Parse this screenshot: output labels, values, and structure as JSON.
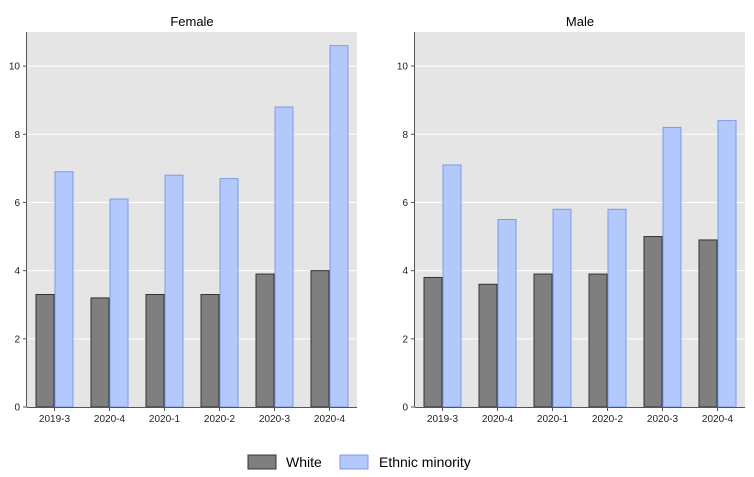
{
  "chart_data": [
    {
      "type": "bar",
      "title": "Female",
      "categories": [
        "2019-3",
        "2020-4",
        "2020-1",
        "2020-2",
        "2020-3",
        "2020-4"
      ],
      "series": [
        {
          "name": "White",
          "values": [
            3.3,
            3.2,
            3.3,
            3.3,
            3.9,
            4.0
          ]
        },
        {
          "name": "Ethnic minority",
          "values": [
            6.9,
            6.1,
            6.8,
            6.7,
            8.8,
            10.6
          ]
        }
      ],
      "ylim": [
        0,
        11
      ],
      "yticks": [
        0,
        2,
        4,
        6,
        8,
        10
      ],
      "grid": true
    },
    {
      "type": "bar",
      "title": "Male",
      "categories": [
        "2019-3",
        "2020-4",
        "2020-1",
        "2020-2",
        "2020-3",
        "2020-4"
      ],
      "series": [
        {
          "name": "White",
          "values": [
            3.8,
            3.6,
            3.9,
            3.9,
            5.0,
            4.9
          ]
        },
        {
          "name": "Ethnic minority",
          "values": [
            7.1,
            5.5,
            5.8,
            5.8,
            8.2,
            8.4
          ]
        }
      ],
      "ylim": [
        0,
        11
      ],
      "yticks": [
        0,
        2,
        4,
        6,
        8,
        10
      ],
      "grid": true
    }
  ],
  "legend": {
    "position": "bottom",
    "items": [
      {
        "label": "White",
        "color": "#7f7f7f",
        "stroke": "#333333"
      },
      {
        "label": "Ethnic minority",
        "color": "#b3c9fb",
        "stroke": "#7b9be8"
      }
    ]
  },
  "colors": {
    "panel_bg": "#e5e5e5",
    "grid": "#ffffff",
    "white_bar": "#7f7f7f",
    "white_bar_edge": "#333333",
    "minority_bar": "#b3c9fb",
    "minority_bar_edge": "#7b9be8"
  }
}
